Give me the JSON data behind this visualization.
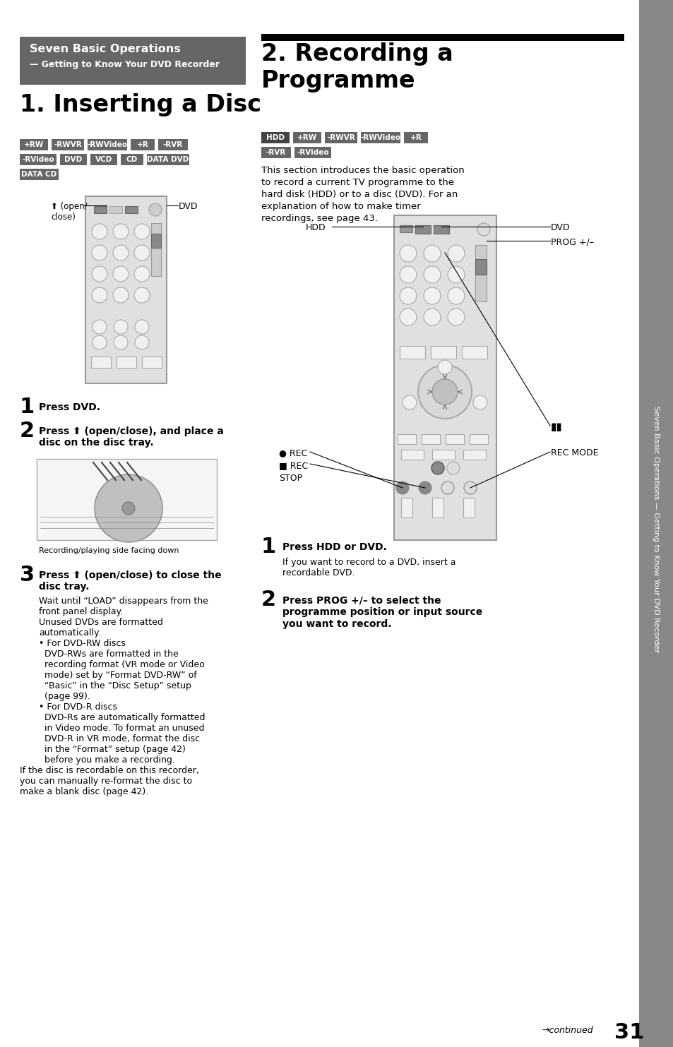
{
  "page_bg": "#ffffff",
  "sidebar_bg": "#888888",
  "header_box_bg": "#666666",
  "page_number": "31",
  "header_title": "Seven Basic Operations",
  "header_subtitle": "— Getting to Know Your DVD Recorder",
  "section1_title": "1. Inserting a Disc",
  "section2_title": "2. Recording a\nProgramme",
  "sidebar_text": "Seven Basic Operations — Getting to Know Your DVD Recorder",
  "disc_badges_row1": [
    "+RW",
    "-RWVR",
    "-RWVideo",
    "+R",
    "-RVR"
  ],
  "disc_badges_row2": [
    "-RVideo",
    "DVD",
    "VCD",
    "CD",
    "DATA DVD"
  ],
  "disc_badges_row3": [
    "DATA CD"
  ],
  "rec_badges_row1": [
    "HDD",
    "+RW",
    "-RWVR",
    "-RWVideo",
    "+R"
  ],
  "rec_badges_row2": [
    "-RVR",
    "-RVideo"
  ],
  "step1_bold": "Press DVD.",
  "step2_bold": "Press ⬆ (open/close), and place a\ndisc on the disc tray.",
  "step3_bold": "Press ⬆ (open/close) to close the\ndisc tray.",
  "step3_body_1": "Wait until “LOAD” disappears from the",
  "step3_body_2": "front panel display.",
  "step3_body_3": "Unused DVDs are formatted",
  "step3_body_4": "automatically.",
  "step3_body_5": "• For DVD-RW discs",
  "step3_body_6": "  DVD-RWs are formatted in the",
  "step3_body_7": "  recording format (VR mode or Video",
  "step3_body_8": "  mode) set by “Format DVD-RW” of",
  "step3_body_9": "  “Basic” in the “Disc Setup” setup",
  "step3_body_10": "  (page 99).",
  "step3_body_11": "• For DVD-R discs",
  "step3_body_12": "  DVD-Rs are automatically formatted",
  "step3_body_13": "  in Video mode. To format an unused",
  "step3_body_14": "  DVD-R in VR mode, format the disc",
  "step3_body_15": "  in the “Format” setup (page 42)",
  "step3_body_16": "  before you make a recording.",
  "step3_footer_1": "If the disc is recordable on this recorder,",
  "step3_footer_2": "you can manually re-format the disc to",
  "step3_footer_3": "make a blank disc (page 42).",
  "rec_intro_1": "This section introduces the basic operation",
  "rec_intro_2": "to record a current TV programme to the",
  "rec_intro_3": "hard disk (HDD) or to a disc (DVD). For an",
  "rec_intro_4": "explanation of how to make timer",
  "rec_intro_5": "recordings, see page 43.",
  "rec_step1_bold": "Press HDD or DVD.",
  "rec_step1_body_1": "If you want to record to a DVD, insert a",
  "rec_step1_body_2": "recordable DVD.",
  "rec_step2_bold_1": "Press PROG +/– to select the",
  "rec_step2_bold_2": "programme position or input source",
  "rec_step2_bold_3": "you want to record.",
  "open_close_label": "⬆ (open/\nclose)",
  "recording_caption": "Recording/playing side facing down",
  "continued_text": "→continued"
}
